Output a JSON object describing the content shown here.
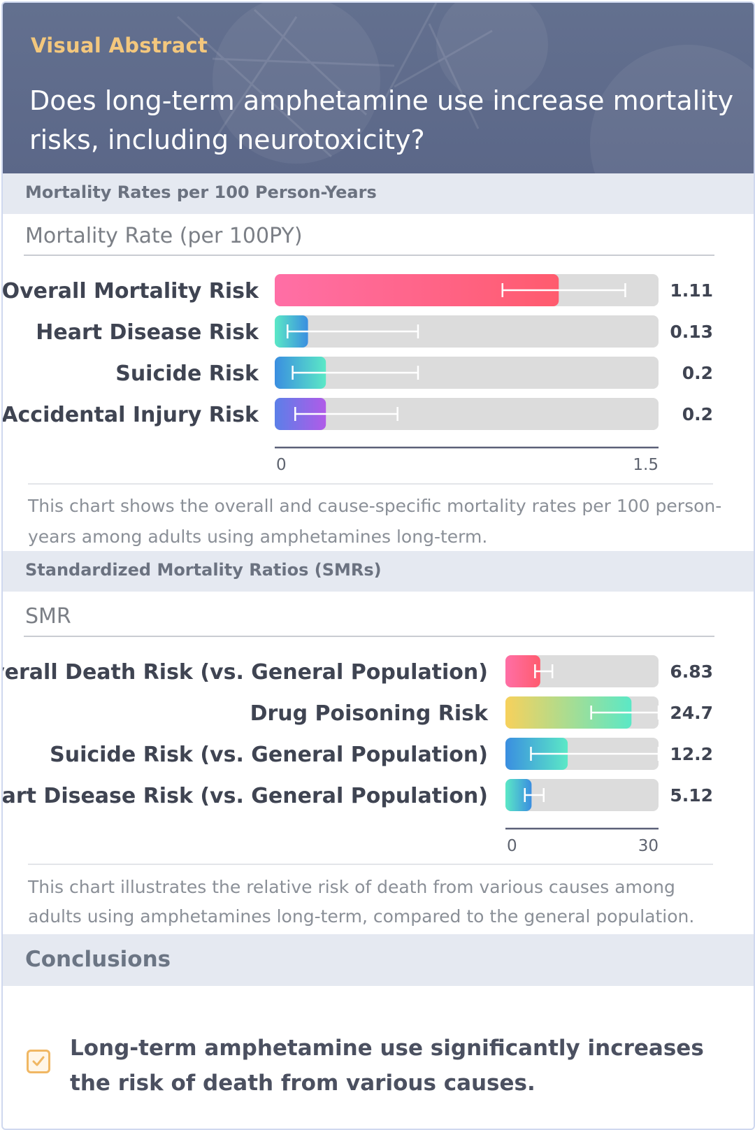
{
  "header": {
    "eyebrow": "Visual Abstract",
    "title": "Does long-term amphetamine use increase mortality risks, including neurotoxicity?"
  },
  "section1": {
    "heading": "Mortality Rates per 100 Person-Years",
    "caption": "This chart shows the overall and cause-specific mortality rates per 100 person-years among adults using amphetamines long-term."
  },
  "section2": {
    "heading": "Standardized Mortality Ratios (SMRs)",
    "caption": "This chart illustrates the relative risk of death from various causes among adults using amphetamines long-term, compared to the general population."
  },
  "chart_data": [
    {
      "type": "bar",
      "orientation": "horizontal",
      "title": "Mortality Rate (per 100PY)",
      "xlim": [
        0,
        1.5
      ],
      "ticks": [
        "0",
        "1.5"
      ],
      "categories": [
        "Overall Mortality Risk",
        "Heart Disease Risk",
        "Suicide Risk",
        "Accidental Injury Risk"
      ],
      "values": [
        1.11,
        0.13,
        0.2,
        0.2
      ],
      "value_labels": [
        "1.11",
        "0.13",
        "0.2",
        "0.2"
      ],
      "error_low": [
        0.89,
        0.05,
        0.07,
        0.08
      ],
      "error_high": [
        1.37,
        0.56,
        0.56,
        0.48
      ],
      "colors": [
        [
          "#ff6fa6",
          "#ff5b6e"
        ],
        [
          "#5be8c6",
          "#3a8ee0"
        ],
        [
          "#3a8ee0",
          "#5be8c6"
        ],
        [
          "#5b7fe8",
          "#b05be8"
        ]
      ]
    },
    {
      "type": "bar",
      "orientation": "horizontal",
      "title": "SMR",
      "xlim": [
        0,
        30
      ],
      "ticks": [
        "0",
        "30"
      ],
      "categories": [
        "Overall Death Risk (vs. General Population)",
        "Drug Poisoning Risk",
        "Suicide Risk (vs. General Population)",
        "Heart Disease Risk (vs. General Population)"
      ],
      "values": [
        6.83,
        24.7,
        12.2,
        5.12
      ],
      "value_labels": [
        "6.83",
        "24.7",
        "12.2",
        "5.12"
      ],
      "error_low": [
        5.8,
        16.8,
        5.0,
        3.8
      ],
      "error_high": [
        9.2,
        30.0,
        30.0,
        7.5
      ],
      "colors": [
        [
          "#ff6fa6",
          "#ff5b6e"
        ],
        [
          "#f7d15c",
          "#5be8c6"
        ],
        [
          "#3a8ee0",
          "#5be8c6"
        ],
        [
          "#5be8c6",
          "#3a8ee0"
        ]
      ]
    }
  ],
  "conclusions": {
    "heading": "Conclusions",
    "items": [
      "Long-term amphetamine use significantly increases the risk of death from various causes."
    ]
  }
}
